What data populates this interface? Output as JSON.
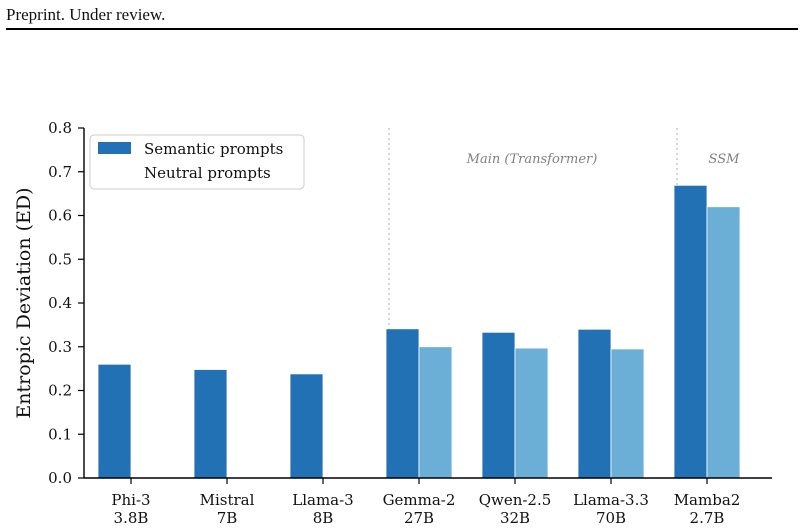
{
  "header": {
    "text": "Preprint. Under review."
  },
  "chart_data": {
    "type": "bar",
    "categories": [
      [
        "Phi-3",
        "3.8B"
      ],
      [
        "Mistral",
        "7B"
      ],
      [
        "Llama-3",
        "8B"
      ],
      [
        "Gemma-2",
        "27B"
      ],
      [
        "Qwen-2.5",
        "32B"
      ],
      [
        "Llama-3.3",
        "70B"
      ],
      [
        "Mamba2",
        "2.7B"
      ]
    ],
    "series": [
      {
        "name": "Semantic prompts",
        "color": "#2271b5",
        "values": [
          0.26,
          0.248,
          0.238,
          0.341,
          0.333,
          0.34,
          0.669
        ]
      },
      {
        "name": "Neutral prompts",
        "color": "#6baed6",
        "values": [
          null,
          null,
          null,
          0.3,
          0.297,
          0.295,
          0.62
        ]
      }
    ],
    "ylabel": "Entropic Deviation (ED)",
    "xlabel": "",
    "ylim": [
      0,
      0.8
    ],
    "yticks": [
      0.0,
      0.1,
      0.2,
      0.3,
      0.4,
      0.5,
      0.6,
      0.7,
      0.8
    ],
    "group_labels": [
      "Main (Transformer)",
      "SSM"
    ],
    "legend": "top-left",
    "grid": false
  }
}
